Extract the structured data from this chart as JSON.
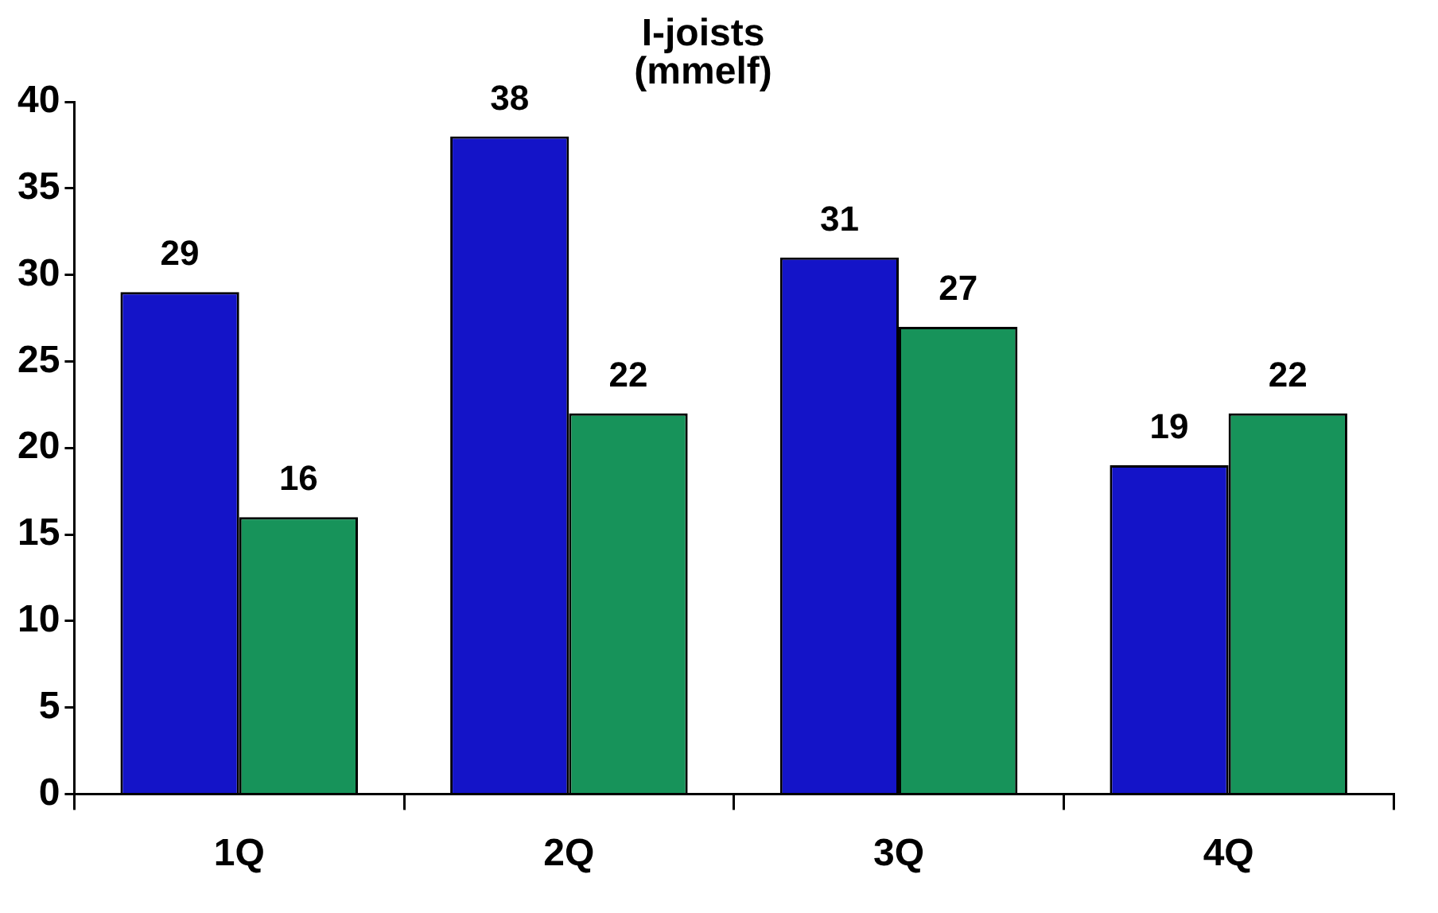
{
  "chart_data": {
    "type": "bar",
    "title": "I-joists\n(mmelf)",
    "categories": [
      "1Q",
      "2Q",
      "3Q",
      "4Q"
    ],
    "series": [
      {
        "color": "#1414c8",
        "values": [
          29,
          38,
          31,
          19
        ]
      },
      {
        "color": "#17935a",
        "values": [
          16,
          22,
          27,
          22
        ]
      }
    ],
    "ylim": [
      0,
      40
    ],
    "yticks": [
      0,
      5,
      10,
      15,
      20,
      25,
      30,
      35,
      40
    ],
    "grid": false,
    "legend": false,
    "data_labels": true
  }
}
